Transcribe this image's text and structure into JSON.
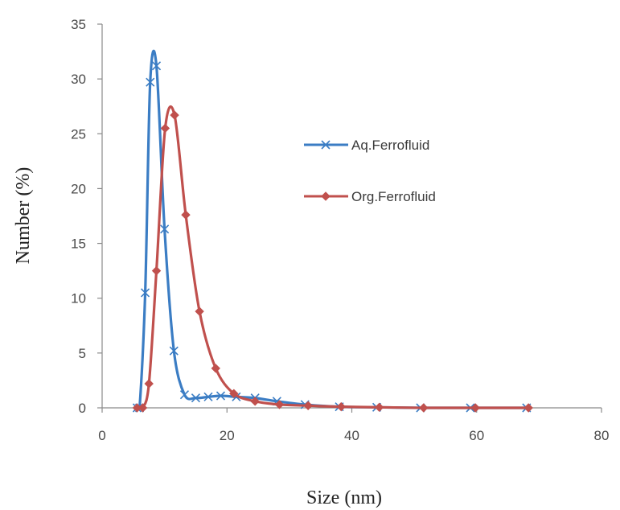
{
  "chart_data": {
    "type": "line",
    "title": "",
    "xlabel": "Size (nm)",
    "ylabel": "Number (%)",
    "xlim": [
      0,
      80
    ],
    "ylim": [
      0,
      35
    ],
    "xticks": [
      0,
      20,
      40,
      60,
      80
    ],
    "yticks": [
      0,
      5,
      10,
      15,
      20,
      25,
      30,
      35
    ],
    "grid": false,
    "legend_position": "center-right",
    "series": [
      {
        "name": "Aq.Ferrofluid",
        "color": "#3b7dc4",
        "marker": "x",
        "x": [
          5.6,
          6.0,
          6.9,
          7.7,
          8.7,
          10.0,
          11.5,
          13.2,
          15.0,
          17.0,
          19.0,
          21.5,
          24.5,
          28.0,
          32.5,
          38.0,
          44.0,
          51.0,
          59.0,
          68.0
        ],
        "y": [
          0,
          0,
          10.5,
          29.7,
          31.2,
          16.3,
          5.2,
          1.2,
          0.9,
          1.0,
          1.1,
          1.0,
          0.9,
          0.6,
          0.3,
          0.1,
          0.05,
          0,
          0,
          0
        ]
      },
      {
        "name": "Org.Ferrofluid",
        "color": "#c0504d",
        "marker": "diamond",
        "x": [
          5.6,
          6.5,
          7.5,
          8.7,
          10.1,
          11.6,
          13.4,
          15.6,
          18.2,
          21.1,
          24.5,
          28.4,
          33.0,
          38.3,
          44.4,
          51.5,
          59.8,
          68.3
        ],
        "y": [
          0,
          0,
          2.2,
          12.5,
          25.5,
          26.7,
          17.6,
          8.8,
          3.6,
          1.3,
          0.6,
          0.3,
          0.2,
          0.1,
          0.05,
          0,
          0,
          0
        ]
      }
    ]
  }
}
